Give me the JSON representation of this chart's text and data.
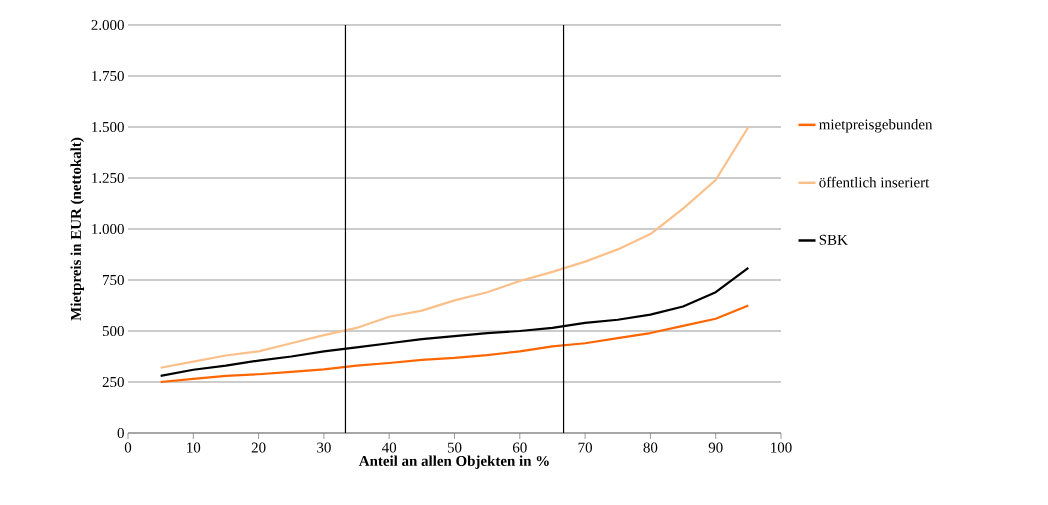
{
  "chart_data": {
    "type": "line",
    "x": [
      5,
      10,
      15,
      20,
      25,
      30,
      35,
      40,
      45,
      50,
      55,
      60,
      65,
      70,
      75,
      80,
      85,
      90,
      95
    ],
    "series": [
      {
        "name": "mietpreisgebunden",
        "color": "#ff6600",
        "values": [
          250,
          265,
          280,
          288,
          300,
          312,
          330,
          343,
          358,
          368,
          382,
          400,
          425,
          440,
          465,
          490,
          525,
          560,
          625
        ]
      },
      {
        "name": "öffentlich inseriert",
        "color": "#fbbf8a",
        "values": [
          320,
          350,
          380,
          400,
          440,
          480,
          515,
          570,
          600,
          650,
          690,
          745,
          790,
          840,
          900,
          975,
          1100,
          1240,
          1500
        ]
      },
      {
        "name": "SBK",
        "color": "#000000",
        "values": [
          280,
          310,
          330,
          355,
          375,
          400,
          420,
          440,
          460,
          475,
          490,
          500,
          515,
          540,
          555,
          580,
          620,
          690,
          810
        ]
      }
    ],
    "xlabel": "Anteil an allen Objekten in %",
    "ylabel": "Mietpreis in EUR (nettokalt)",
    "xlim": [
      0,
      100
    ],
    "ylim": [
      0,
      2000
    ],
    "xticks": [
      0,
      10,
      20,
      30,
      40,
      50,
      60,
      70,
      80,
      90,
      100
    ],
    "yticks": [
      0,
      250,
      500,
      750,
      {
        "value": 1000,
        "label": "1.000"
      },
      {
        "value": 1250,
        "label": "1.250"
      },
      {
        "value": 1500,
        "label": "1.500"
      },
      {
        "value": 1750,
        "label": "1.750"
      },
      {
        "value": 2000,
        "label": "2.000"
      }
    ],
    "ref_lines": [
      {
        "axis": "x",
        "value": 33.3,
        "color": "#000000"
      },
      {
        "axis": "x",
        "value": 66.7,
        "color": "#000000"
      }
    ],
    "grid": "y",
    "legend": "right",
    "marker": "none",
    "line_style": "solid"
  }
}
